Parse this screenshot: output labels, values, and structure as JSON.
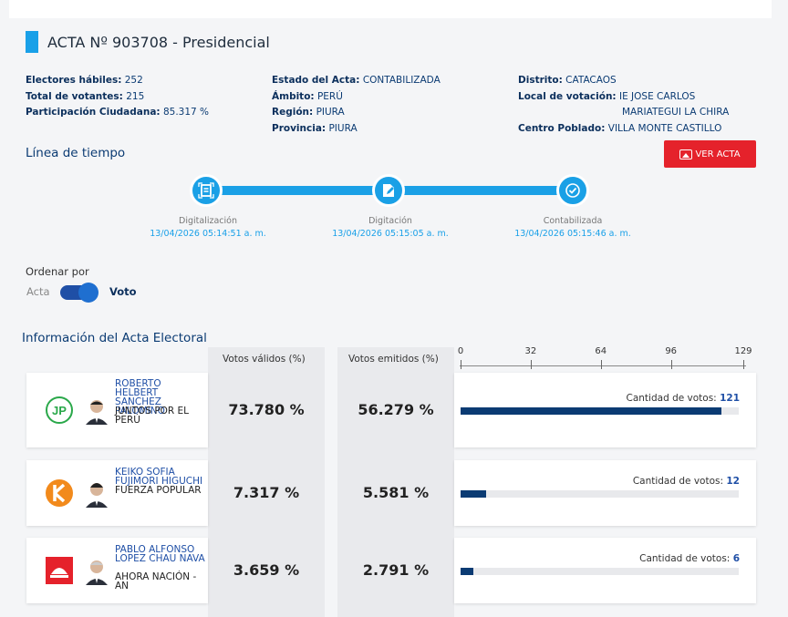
{
  "acta": {
    "title": "ACTA Nº 903708 - Presidencial",
    "col1": [
      {
        "label": "Electores hábiles:",
        "value": "252"
      },
      {
        "label": "Total de votantes:",
        "value": "215"
      },
      {
        "label": "Participación Ciudadana:",
        "value": "85.317 %"
      }
    ],
    "col2": [
      {
        "label": "Estado del Acta:",
        "value": "CONTABILIZADA"
      },
      {
        "label": "Ámbito:",
        "value": "PERÚ"
      },
      {
        "label": "Región:",
        "value": "PIURA"
      },
      {
        "label": "Provincia:",
        "value": "PIURA"
      }
    ],
    "col3": {
      "distrito_label": "Distrito:",
      "distrito_value": "CATACAOS",
      "local_label": "Local de votación:",
      "local_value_1": "IE JOSE CARLOS",
      "local_value_2": "MARIATEGUI LA CHIRA",
      "centro_label": "Centro Poblado:",
      "centro_value": "VILLA MONTE CASTILLO"
    }
  },
  "timeline": {
    "heading": "Línea de tiempo",
    "ver_acta": "VER ACTA",
    "steps": [
      {
        "label": "Digitalización",
        "date": "13/04/2026 05:14:51 a. m."
      },
      {
        "label": "Digitación",
        "date": "13/04/2026 05:15:05 a. m."
      },
      {
        "label": "Contabilizada",
        "date": "13/04/2026 05:15:46 a. m."
      }
    ]
  },
  "order": {
    "label": "Ordenar por",
    "option_left": "Acta",
    "option_right": "Voto",
    "selected": "Voto"
  },
  "results": {
    "heading": "Información del Acta Electoral",
    "col_validos": "Votos válidos (%)",
    "col_emitidos": "Votos emitidos (%)",
    "axis_ticks": [
      "0",
      "32",
      "64",
      "96",
      "129"
    ],
    "axis_max": 129,
    "count_label": "Cantidad de votos:",
    "rows": [
      {
        "candidate": "ROBERTO HELBERT SANCHEZ PALOMINO",
        "party": "JUNTOS POR EL PERÚ",
        "validos": "73.780 %",
        "emitidos": "56.279 %",
        "votes": 121,
        "votes_text": "121",
        "logo_color": "#2aa84a"
      },
      {
        "candidate": "KEIKO SOFIA FUJIMORI HIGUCHI",
        "party": "FUERZA POPULAR",
        "validos": "7.317 %",
        "emitidos": "5.581 %",
        "votes": 12,
        "votes_text": "12",
        "logo_color": "#f28a1c"
      },
      {
        "candidate": "PABLO ALFONSO LOPEZ CHAU NAVA",
        "party": "AHORA NACIÓN - AN",
        "validos": "3.659 %",
        "emitidos": "2.791 %",
        "votes": 6,
        "votes_text": "6",
        "logo_color": "#e5222b"
      }
    ]
  }
}
